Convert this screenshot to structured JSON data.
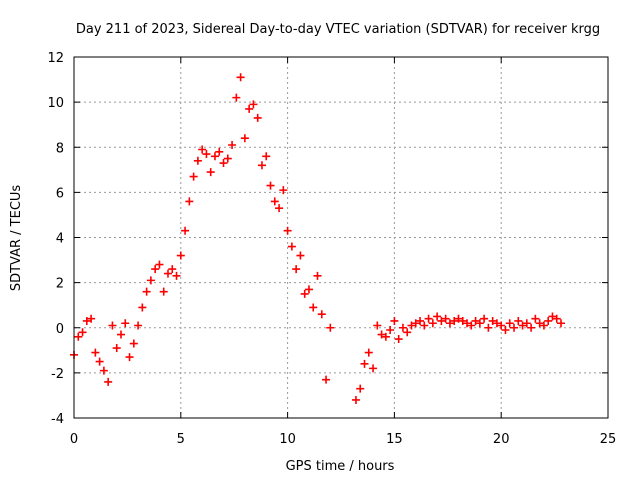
{
  "chart_data": {
    "type": "scatter",
    "title": "Day 211 of 2023, Sidereal Day-to-day VTEC variation (SDTVAR) for receiver krgg",
    "xlabel": "GPS time / hours",
    "ylabel": "SDTVAR / TECUs",
    "xlim": [
      0,
      25
    ],
    "ylim": [
      -4,
      12
    ],
    "xticks": [
      "0",
      "5",
      "10",
      "15",
      "20",
      "25"
    ],
    "yticks": [
      "-4",
      "-2",
      "0",
      "2",
      "4",
      "6",
      "8",
      "10",
      "12"
    ],
    "grid": true,
    "marker": "+",
    "series": [
      {
        "name": "SDTVAR",
        "color": "#ff0000",
        "x": [
          0.0,
          0.2,
          0.4,
          0.6,
          0.8,
          1.0,
          1.2,
          1.4,
          1.6,
          1.8,
          2.0,
          2.2,
          2.4,
          2.6,
          2.8,
          3.0,
          3.2,
          3.4,
          3.6,
          3.8,
          4.0,
          4.2,
          4.4,
          4.6,
          4.8,
          5.0,
          5.2,
          5.4,
          5.6,
          5.8,
          6.0,
          6.2,
          6.4,
          6.6,
          6.8,
          7.0,
          7.2,
          7.4,
          7.6,
          7.8,
          8.0,
          8.2,
          8.4,
          8.6,
          8.8,
          9.0,
          9.2,
          9.4,
          9.6,
          9.8,
          10.0,
          10.2,
          10.4,
          10.6,
          10.8,
          11.0,
          11.2,
          11.4,
          11.6,
          11.8,
          12.0,
          13.2,
          13.4,
          13.6,
          13.8,
          14.0,
          14.2,
          14.4,
          14.6,
          14.8,
          15.0,
          15.2,
          15.4,
          15.6,
          15.8,
          16.0,
          16.2,
          16.4,
          16.6,
          16.8,
          17.0,
          17.2,
          17.4,
          17.6,
          17.8,
          18.0,
          18.2,
          18.4,
          18.6,
          18.8,
          19.0,
          19.2,
          19.4,
          19.6,
          19.8,
          20.0,
          20.2,
          20.4,
          20.6,
          20.8,
          21.0,
          21.2,
          21.4,
          21.6,
          21.8,
          22.0,
          22.2,
          22.4,
          22.6,
          22.8
        ],
        "y": [
          -1.2,
          -0.4,
          -0.2,
          0.3,
          0.4,
          -1.1,
          -1.5,
          -1.9,
          -2.4,
          0.1,
          -0.9,
          -0.3,
          0.2,
          -1.3,
          -0.7,
          0.1,
          0.9,
          1.6,
          2.1,
          2.6,
          2.8,
          1.6,
          2.4,
          2.6,
          2.3,
          3.2,
          4.3,
          5.6,
          6.7,
          7.4,
          7.9,
          7.7,
          6.9,
          7.6,
          7.8,
          7.3,
          7.5,
          8.1,
          10.2,
          11.1,
          8.4,
          9.7,
          9.9,
          9.3,
          7.2,
          7.6,
          6.3,
          5.6,
          5.3,
          6.1,
          4.3,
          3.6,
          2.6,
          3.2,
          1.5,
          1.7,
          0.9,
          2.3,
          0.6,
          -2.3,
          0.0,
          -3.2,
          -2.7,
          -1.6,
          -1.1,
          -1.8,
          0.1,
          -0.3,
          -0.4,
          -0.1,
          0.3,
          -0.5,
          0.0,
          -0.2,
          0.1,
          0.2,
          0.3,
          0.1,
          0.4,
          0.2,
          0.5,
          0.3,
          0.4,
          0.2,
          0.3,
          0.4,
          0.3,
          0.2,
          0.1,
          0.3,
          0.2,
          0.4,
          0.0,
          0.3,
          0.2,
          0.1,
          -0.1,
          0.2,
          0.0,
          0.3,
          0.1,
          0.2,
          0.0,
          0.4,
          0.2,
          0.1,
          0.3,
          0.5,
          0.4,
          0.2
        ]
      }
    ]
  }
}
